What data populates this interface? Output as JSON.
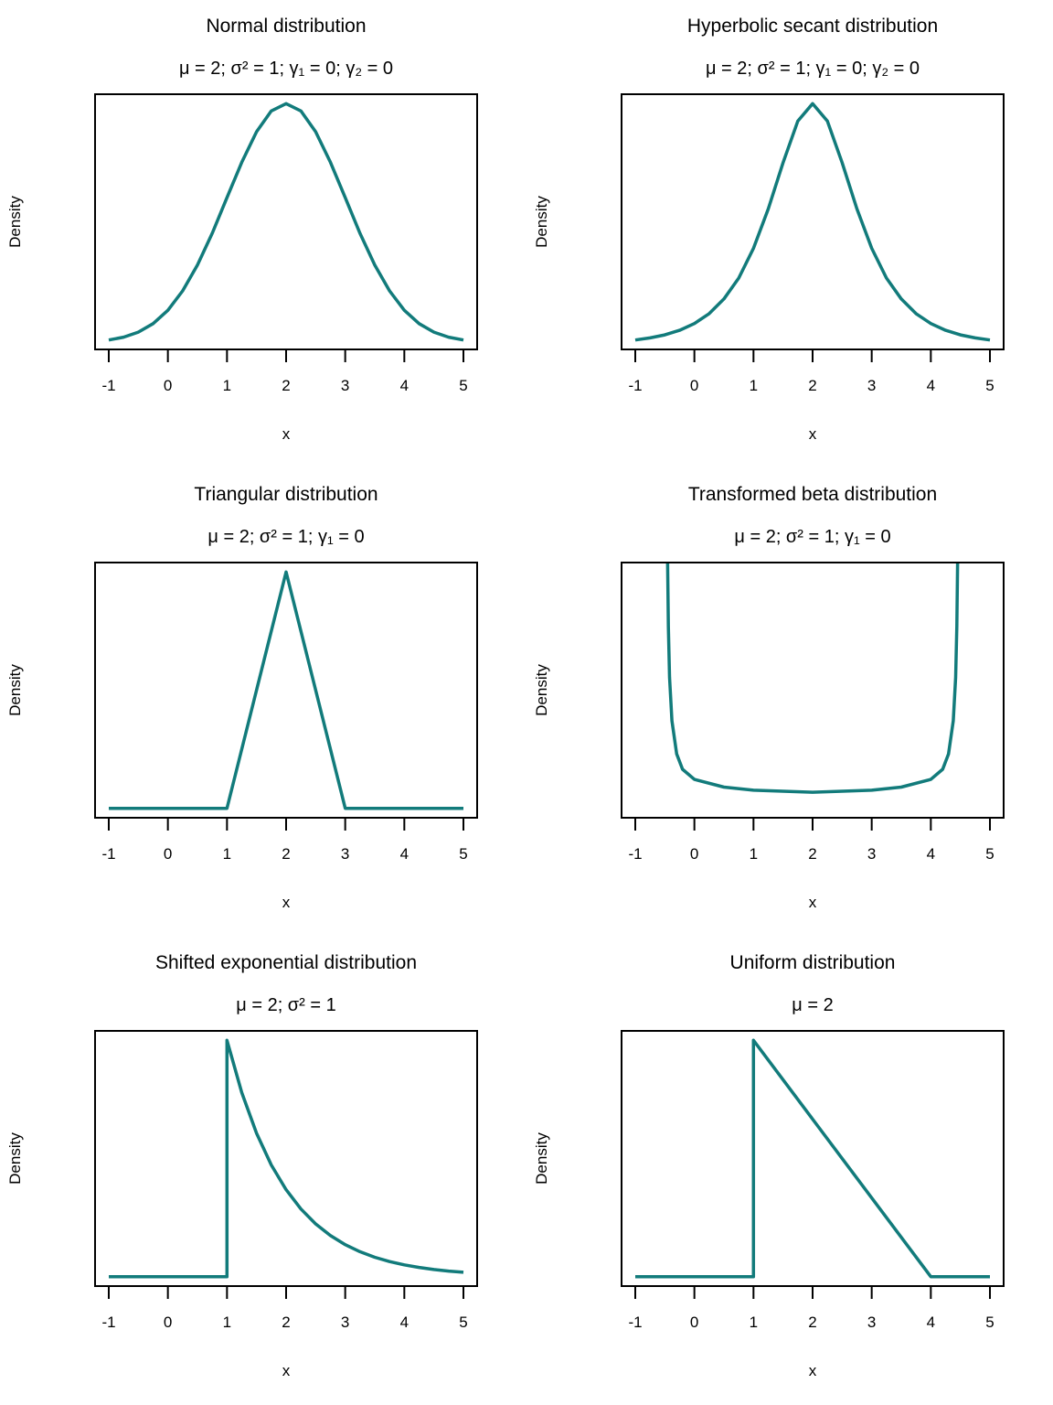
{
  "line_color": "#127b7b",
  "chart_data": [
    {
      "type": "line",
      "title": "Normal distribution",
      "subtitle": "μ = 2;  σ² = 1;  γ₁ = 0;  γ₂ = 0",
      "xlabel": "x",
      "ylabel": "Density",
      "xlim": [
        -1,
        5
      ],
      "ylim": [
        -0.0114,
        0.4147
      ],
      "xticks": [
        "-1",
        "0",
        "1",
        "2",
        "3",
        "4",
        "5"
      ],
      "x": [
        -1,
        -0.75,
        -0.5,
        -0.25,
        0,
        0.25,
        0.5,
        0.75,
        1,
        1.25,
        1.5,
        1.75,
        2,
        2.25,
        2.5,
        2.75,
        3,
        3.25,
        3.5,
        3.75,
        4,
        4.25,
        4.5,
        4.75,
        5
      ],
      "y": [
        0.0044,
        0.0091,
        0.0175,
        0.0317,
        0.054,
        0.0863,
        0.1295,
        0.1826,
        0.242,
        0.3011,
        0.3521,
        0.3867,
        0.3989,
        0.3867,
        0.3521,
        0.3011,
        0.242,
        0.1826,
        0.1295,
        0.0863,
        0.054,
        0.0317,
        0.0175,
        0.0091,
        0.0044
      ]
    },
    {
      "type": "line",
      "title": "Hyperbolic secant distribution",
      "subtitle": "μ = 2;  σ² = 1;  γ₁ = 0;  γ₂ = 0",
      "xlabel": "x",
      "ylabel": "Density",
      "xlim": [
        -1,
        5
      ],
      "ylim": [
        -0.0106,
        0.5196
      ],
      "xticks": [
        "-1",
        "0",
        "1",
        "2",
        "3",
        "4",
        "5"
      ],
      "x": [
        -1,
        -0.75,
        -0.5,
        -0.25,
        0,
        0.25,
        0.5,
        0.75,
        1,
        1.25,
        1.5,
        1.75,
        2,
        2.25,
        2.5,
        2.75,
        3,
        3.25,
        3.5,
        3.75,
        4,
        4.25,
        4.5,
        4.75,
        5
      ],
      "y": [
        0.009,
        0.0133,
        0.0197,
        0.0292,
        0.0431,
        0.0637,
        0.0943,
        0.1377,
        0.1993,
        0.2813,
        0.3775,
        0.4638,
        0.5,
        0.4638,
        0.3775,
        0.2813,
        0.1993,
        0.1377,
        0.0943,
        0.0637,
        0.0431,
        0.0292,
        0.0197,
        0.0133,
        0.009
      ]
    },
    {
      "type": "line",
      "title": "Triangular distribution",
      "subtitle": "μ = 2;  σ² = 1;  γ₁ = 0",
      "xlabel": "x",
      "ylabel": "Density",
      "xlim": [
        -1,
        5
      ],
      "ylim": [
        -0.04,
        1.04
      ],
      "xticks": [
        "-1",
        "0",
        "1",
        "2",
        "3",
        "4",
        "5"
      ],
      "x": [
        -1,
        1,
        2,
        3,
        5
      ],
      "y": [
        0,
        0,
        1,
        0,
        0
      ]
    },
    {
      "type": "line",
      "title": "Transformed beta distribution",
      "subtitle": "μ = 2;  σ² = 1;  γ₁ = 0",
      "xlabel": "x",
      "ylabel": "Density",
      "xlim": [
        -1,
        5
      ],
      "ylim": [
        0,
        1
      ],
      "xticks": [
        "-1",
        "0",
        "1",
        "2",
        "3",
        "4",
        "5"
      ],
      "x": [
        -0.455,
        -0.44,
        -0.42,
        -0.38,
        -0.3,
        -0.2,
        0,
        0.5,
        1,
        2,
        3,
        3.5,
        4,
        4.2,
        4.3,
        4.38,
        4.42,
        4.44,
        4.455
      ],
      "y": [
        1.05,
        0.75,
        0.55,
        0.38,
        0.25,
        0.19,
        0.15,
        0.12,
        0.108,
        0.1,
        0.108,
        0.12,
        0.15,
        0.19,
        0.25,
        0.38,
        0.55,
        0.75,
        1.05
      ]
    },
    {
      "type": "line",
      "title": "Shifted exponential distribution",
      "subtitle": "μ = 2;  σ² = 1",
      "xlabel": "x",
      "ylabel": "Density",
      "xlim": [
        -1,
        5
      ],
      "ylim": [
        -0.04,
        1.04
      ],
      "xticks": [
        "-1",
        "0",
        "1",
        "2",
        "3",
        "4",
        "5"
      ],
      "x": [
        -1,
        1,
        1,
        1.25,
        1.5,
        1.75,
        2,
        2.25,
        2.5,
        2.75,
        3,
        3.25,
        3.5,
        3.75,
        4,
        4.25,
        4.5,
        4.75,
        5
      ],
      "y": [
        0,
        0,
        1,
        0.7788,
        0.6065,
        0.4724,
        0.3679,
        0.2865,
        0.2231,
        0.1738,
        0.1353,
        0.1054,
        0.0821,
        0.0639,
        0.0498,
        0.0388,
        0.0302,
        0.0235,
        0.0183
      ]
    },
    {
      "type": "line",
      "title": "Uniform distribution",
      "subtitle": "μ = 2",
      "xlabel": "x",
      "ylabel": "Density",
      "xlim": [
        -1,
        5
      ],
      "ylim": [
        -0.04,
        1.04
      ],
      "xticks": [
        "-1",
        "0",
        "1",
        "2",
        "3",
        "4",
        "5"
      ],
      "x": [
        -1,
        1,
        1,
        4,
        5
      ],
      "y": [
        0,
        0,
        1,
        0,
        0
      ]
    }
  ]
}
